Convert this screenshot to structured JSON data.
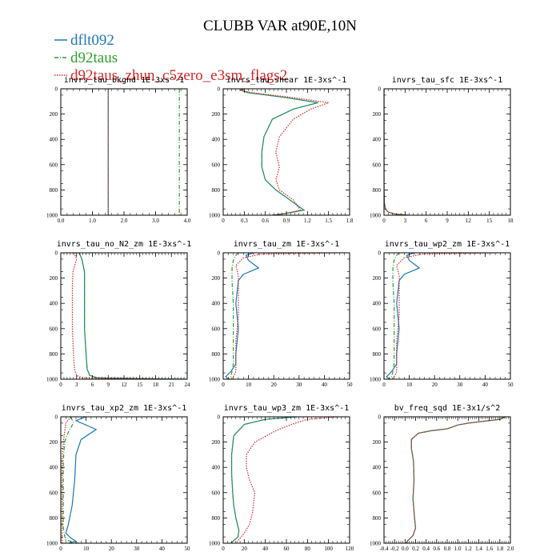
{
  "figure": {
    "title": "CLUBB VAR at90E,10N",
    "legend": [
      {
        "label": "dflt092",
        "color": "#1f77b4",
        "dash": "solid"
      },
      {
        "label": "d92taus",
        "color": "#2ca02c",
        "dash": "dashdot"
      },
      {
        "label": "d92taus_zhun_c5zero_e3sm_flags2",
        "color": "#d62728",
        "dash": "dotted"
      }
    ]
  },
  "chart_data": [
    {
      "type": "line",
      "title": "invrs_tau_bkgnd 1E-3xs^-1",
      "xlim": [
        0,
        4
      ],
      "ylim": [
        1000,
        0
      ],
      "xticks": [
        "0.0",
        "1.0",
        "2.0",
        "3.0",
        "4.0"
      ],
      "xtick_values": [
        0,
        1,
        2,
        3,
        4
      ],
      "yticks": [
        "0",
        "200",
        "400",
        "600",
        "800",
        "1000"
      ],
      "series": [
        {
          "name": "dflt092",
          "x": [
            1.5,
            1.5
          ],
          "y": [
            0,
            1000
          ]
        },
        {
          "name": "d92taus",
          "x": [
            3.75,
            3.75
          ],
          "y": [
            0,
            1000
          ]
        },
        {
          "name": "d92taus_zhun_c5zero_e3sm_flags2",
          "x": [
            1.5,
            1.5
          ],
          "y": [
            0,
            1000
          ]
        }
      ]
    },
    {
      "type": "line",
      "title": "invrs_tau_shear 1E-3xs^-1",
      "xlim": [
        0,
        1.8
      ],
      "ylim": [
        1000,
        0
      ],
      "xticks": [
        "0",
        "0.3",
        "0.6",
        "0.9",
        "1.2",
        "1.5",
        "1.8"
      ],
      "xtick_values": [
        0,
        0.3,
        0.6,
        0.9,
        1.2,
        1.5,
        1.8
      ],
      "yticks": [
        "0",
        "200",
        "400",
        "600",
        "800",
        "1000"
      ],
      "series": [
        {
          "name": "dflt092",
          "x": [
            0.3,
            0.25,
            0.35,
            0.9,
            1.35,
            1.0,
            0.7,
            0.58,
            0.55,
            0.55,
            0.6,
            0.75,
            0.95,
            1.15,
            0.9,
            0.7
          ],
          "y": [
            0,
            10,
            30,
            70,
            110,
            160,
            240,
            380,
            500,
            620,
            720,
            800,
            880,
            960,
            985,
            1000
          ]
        },
        {
          "name": "d92taus",
          "x": [
            0.3,
            0.25,
            0.35,
            0.9,
            1.35,
            1.0,
            0.7,
            0.58,
            0.55,
            0.55,
            0.6,
            0.75,
            0.95,
            1.15,
            0.9,
            0.7
          ],
          "y": [
            0,
            10,
            30,
            70,
            110,
            160,
            240,
            380,
            500,
            620,
            720,
            800,
            880,
            960,
            985,
            1000
          ]
        },
        {
          "name": "d92taus_zhun_c5zero_e3sm_flags2",
          "x": [
            0.3,
            0.25,
            0.4,
            1.0,
            1.5,
            1.25,
            1.0,
            0.8,
            0.75,
            0.8,
            0.75,
            0.8,
            1.0,
            1.1,
            0.9,
            0.7
          ],
          "y": [
            0,
            10,
            30,
            70,
            110,
            160,
            240,
            380,
            500,
            620,
            720,
            800,
            880,
            960,
            985,
            1000
          ]
        }
      ]
    },
    {
      "type": "line",
      "title": "invrs_tau_sfc 1E-3xs^-1",
      "xlim": [
        0,
        18
      ],
      "ylim": [
        1000,
        0
      ],
      "xticks": [
        "0",
        "3",
        "6",
        "9",
        "12",
        "15",
        "18"
      ],
      "xtick_values": [
        0,
        3,
        6,
        9,
        12,
        15,
        18
      ],
      "yticks": [
        "0",
        "200",
        "400",
        "600",
        "800",
        "1000"
      ],
      "series": [
        {
          "name": "dflt092",
          "x": [
            0,
            0,
            0.05,
            0.2,
            0.6,
            1.5,
            3.5
          ],
          "y": [
            0,
            800,
            900,
            950,
            975,
            990,
            1000
          ]
        },
        {
          "name": "d92taus",
          "x": [
            0,
            0,
            0.05,
            0.2,
            0.6,
            1.5,
            3.5
          ],
          "y": [
            0,
            800,
            900,
            950,
            975,
            990,
            1000
          ]
        },
        {
          "name": "d92taus_zhun_c5zero_e3sm_flags2",
          "x": [
            0,
            0,
            0.05,
            0.2,
            0.6,
            1.5,
            3.5
          ],
          "y": [
            0,
            800,
            900,
            950,
            975,
            990,
            1000
          ]
        }
      ]
    },
    {
      "type": "line",
      "title": "invrs_tau_no_N2_zm 1E-3xs^-1",
      "xlim": [
        0,
        24
      ],
      "ylim": [
        1000,
        0
      ],
      "xticks": [
        "0",
        "3",
        "6",
        "9",
        "12",
        "15",
        "18",
        "21",
        "24"
      ],
      "xtick_values": [
        0,
        3,
        6,
        9,
        12,
        15,
        18,
        21,
        24
      ],
      "yticks": [
        "0",
        "200",
        "400",
        "600",
        "800",
        "1000"
      ],
      "series": [
        {
          "name": "dflt092",
          "x": [
            3.5,
            4.0,
            4.5,
            4.5,
            4.5,
            4.5,
            4.8,
            5.0,
            5.5,
            7.0,
            24
          ],
          "y": [
            0,
            50,
            150,
            250,
            400,
            600,
            800,
            920,
            970,
            990,
            1000
          ]
        },
        {
          "name": "d92taus",
          "x": [
            3.5,
            4.0,
            4.5,
            4.5,
            4.5,
            4.5,
            4.8,
            5.0,
            5.5,
            7.0,
            24
          ],
          "y": [
            0,
            50,
            150,
            250,
            400,
            600,
            800,
            920,
            970,
            990,
            1000
          ]
        },
        {
          "name": "d92taus_zhun_c5zero_e3sm_flags2",
          "x": [
            2.5,
            3.0,
            2.3,
            2.2,
            2.2,
            2.2,
            2.4,
            2.6,
            3.0,
            4.0,
            20
          ],
          "y": [
            0,
            50,
            150,
            250,
            400,
            600,
            800,
            920,
            970,
            990,
            1000
          ]
        }
      ]
    },
    {
      "type": "line",
      "title": "invrs_tau_zm 1E-3xs^-1",
      "xlim": [
        0,
        50
      ],
      "ylim": [
        1000,
        0
      ],
      "xticks": [
        "0",
        "10",
        "20",
        "30",
        "40",
        "50"
      ],
      "xtick_values": [
        0,
        10,
        20,
        30,
        40,
        50
      ],
      "yticks": [
        "0",
        "200",
        "400",
        "600",
        "800",
        "1000"
      ],
      "series": [
        {
          "name": "dflt092",
          "x": [
            12,
            9,
            10,
            14,
            8,
            6,
            5,
            6,
            5,
            5,
            3,
            1,
            2
          ],
          "y": [
            0,
            20,
            60,
            120,
            170,
            220,
            400,
            600,
            800,
            880,
            940,
            980,
            1000
          ]
        },
        {
          "name": "d92taus",
          "x": [
            6,
            5,
            4,
            3.5,
            3.5,
            4,
            4,
            4,
            4,
            3.5,
            3,
            2
          ],
          "y": [
            0,
            20,
            60,
            120,
            220,
            400,
            600,
            800,
            880,
            940,
            980,
            1000
          ]
        },
        {
          "name": "d92taus_zhun_c5zero_e3sm_flags2",
          "x": [
            45,
            15,
            8,
            5,
            6,
            6,
            6,
            5,
            5,
            5,
            4,
            3
          ],
          "y": [
            0,
            10,
            40,
            100,
            180,
            300,
            500,
            700,
            850,
            940,
            980,
            1000
          ]
        }
      ]
    },
    {
      "type": "line",
      "title": "invrs_tau_wp2_zm 1E-3xs^-1",
      "xlim": [
        0,
        50
      ],
      "ylim": [
        1000,
        0
      ],
      "xticks": [
        "0",
        "10",
        "20",
        "30",
        "40",
        "50"
      ],
      "xtick_values": [
        0,
        10,
        20,
        30,
        40,
        50
      ],
      "yticks": [
        "0",
        "200",
        "400",
        "600",
        "800",
        "1000"
      ],
      "series": [
        {
          "name": "dflt092",
          "x": [
            12,
            9,
            10,
            14,
            8,
            6,
            5,
            6,
            5,
            5,
            3,
            1,
            2
          ],
          "y": [
            0,
            20,
            60,
            120,
            170,
            220,
            400,
            600,
            800,
            880,
            940,
            980,
            1000
          ]
        },
        {
          "name": "d92taus",
          "x": [
            6,
            5,
            4,
            3.5,
            3.5,
            4,
            4,
            4,
            4,
            3.5,
            3,
            2
          ],
          "y": [
            0,
            20,
            60,
            120,
            220,
            400,
            600,
            800,
            880,
            940,
            980,
            1000
          ]
        },
        {
          "name": "d92taus_zhun_c5zero_e3sm_flags2",
          "x": [
            45,
            15,
            8,
            5,
            6,
            6,
            6,
            5,
            5,
            5,
            4,
            3
          ],
          "y": [
            0,
            10,
            40,
            100,
            180,
            300,
            500,
            700,
            850,
            940,
            980,
            1000
          ]
        }
      ]
    },
    {
      "type": "line",
      "title": "invrs_tau_xp2_zm 1E-3xs^-1",
      "xlim": [
        0,
        50
      ],
      "ylim": [
        1000,
        0
      ],
      "xticks": [
        "0",
        "10",
        "20",
        "30",
        "40",
        "50"
      ],
      "xtick_values": [
        0,
        10,
        20,
        30,
        40,
        50
      ],
      "yticks": [
        "0",
        "200",
        "400",
        "600",
        "800",
        "1000"
      ],
      "series": [
        {
          "name": "dflt092",
          "x": [
            10,
            6,
            14,
            8,
            6,
            5.5,
            4.5,
            3,
            2,
            4,
            6,
            3
          ],
          "y": [
            0,
            30,
            100,
            180,
            300,
            500,
            700,
            850,
            920,
            960,
            985,
            1000
          ]
        },
        {
          "name": "d92taus",
          "x": [
            4,
            5,
            3,
            1.5,
            1,
            1,
            1,
            1,
            1.5,
            2,
            5,
            7
          ],
          "y": [
            0,
            50,
            120,
            200,
            350,
            550,
            750,
            880,
            940,
            975,
            990,
            1000
          ]
        },
        {
          "name": "d92taus_zhun_c5zero_e3sm_flags2",
          "x": [
            4,
            2,
            1.5,
            1,
            0.5,
            0.5,
            0.5,
            0.5,
            0.5,
            0.5,
            0.5
          ],
          "y": [
            0,
            50,
            120,
            200,
            350,
            550,
            750,
            880,
            940,
            975,
            1000
          ]
        }
      ]
    },
    {
      "type": "line",
      "title": "invrs_tau_wp3_zm 1E-3xs^-1",
      "xlim": [
        0,
        120
      ],
      "ylim": [
        1000,
        0
      ],
      "xticks": [
        "0",
        "20",
        "40",
        "60",
        "80",
        "100",
        "120"
      ],
      "xtick_values": [
        0,
        20,
        40,
        60,
        80,
        100,
        120
      ],
      "yticks": [
        "0",
        "200",
        "400",
        "600",
        "800",
        "1000"
      ],
      "series": [
        {
          "name": "dflt092",
          "x": [
            70,
            40,
            20,
            10,
            8,
            8,
            9,
            10,
            12,
            15,
            14,
            10,
            8,
            9
          ],
          "y": [
            0,
            20,
            60,
            150,
            300,
            450,
            600,
            700,
            800,
            900,
            950,
            980,
            995,
            1000
          ]
        },
        {
          "name": "d92taus",
          "x": [
            70,
            40,
            20,
            10,
            8,
            8,
            9,
            10,
            12,
            15,
            14,
            10,
            8,
            9
          ],
          "y": [
            0,
            20,
            60,
            150,
            300,
            450,
            600,
            700,
            800,
            900,
            950,
            980,
            995,
            1000
          ]
        },
        {
          "name": "d92taus_zhun_c5zero_e3sm_flags2",
          "x": [
            110,
            80,
            65,
            50,
            30,
            22,
            22,
            25,
            30,
            28,
            25,
            20,
            15,
            12
          ],
          "y": [
            0,
            20,
            60,
            110,
            200,
            300,
            400,
            500,
            600,
            750,
            850,
            920,
            970,
            1000
          ]
        }
      ]
    },
    {
      "type": "line",
      "title": "bv_freq_sqd 1E-3x1/s^2",
      "xlim": [
        -0.4,
        2.0
      ],
      "ylim": [
        1000,
        0
      ],
      "xticks": [
        "-0.4",
        "-0.2",
        "0.0",
        "0.2",
        "0.4",
        "0.6",
        "0.8",
        "1.0",
        "1.2",
        "1.4",
        "1.6",
        "1.8",
        "2.0"
      ],
      "xtick_values": [
        -0.4,
        -0.2,
        0.0,
        0.2,
        0.4,
        0.6,
        0.8,
        1.0,
        1.2,
        1.4,
        1.6,
        1.8,
        2.0
      ],
      "yticks": [
        "0",
        "200",
        "400",
        "600",
        "800",
        "1000"
      ],
      "series": [
        {
          "name": "dflt092",
          "x": [
            1.9,
            1.8,
            1.5,
            1.2,
            1.0,
            0.9,
            0.8,
            0.5,
            0.25,
            0.12,
            0.12,
            0.16,
            0.17,
            0.15,
            0.18,
            0.2,
            0.15,
            0.05,
            0.02
          ],
          "y": [
            0,
            20,
            35,
            50,
            65,
            80,
            95,
            110,
            130,
            180,
            250,
            350,
            500,
            650,
            800,
            880,
            940,
            980,
            1000
          ]
        },
        {
          "name": "d92taus",
          "x": [
            1.9,
            1.8,
            1.5,
            1.2,
            1.0,
            0.9,
            0.8,
            0.5,
            0.25,
            0.12,
            0.12,
            0.16,
            0.17,
            0.15,
            0.18,
            0.2,
            0.15,
            0.05,
            0.02
          ],
          "y": [
            0,
            20,
            35,
            50,
            65,
            80,
            95,
            110,
            130,
            180,
            250,
            350,
            500,
            650,
            800,
            880,
            940,
            980,
            1000
          ]
        },
        {
          "name": "d92taus_zhun_c5zero_e3sm_flags2",
          "x": [
            1.9,
            1.8,
            1.5,
            1.2,
            1.0,
            0.9,
            0.8,
            0.5,
            0.25,
            0.12,
            0.12,
            0.16,
            0.17,
            0.15,
            0.18,
            0.2,
            0.15,
            0.05,
            0.02
          ],
          "y": [
            0,
            20,
            35,
            50,
            65,
            80,
            95,
            110,
            130,
            180,
            250,
            350,
            500,
            650,
            800,
            880,
            940,
            980,
            1000
          ]
        }
      ]
    }
  ]
}
